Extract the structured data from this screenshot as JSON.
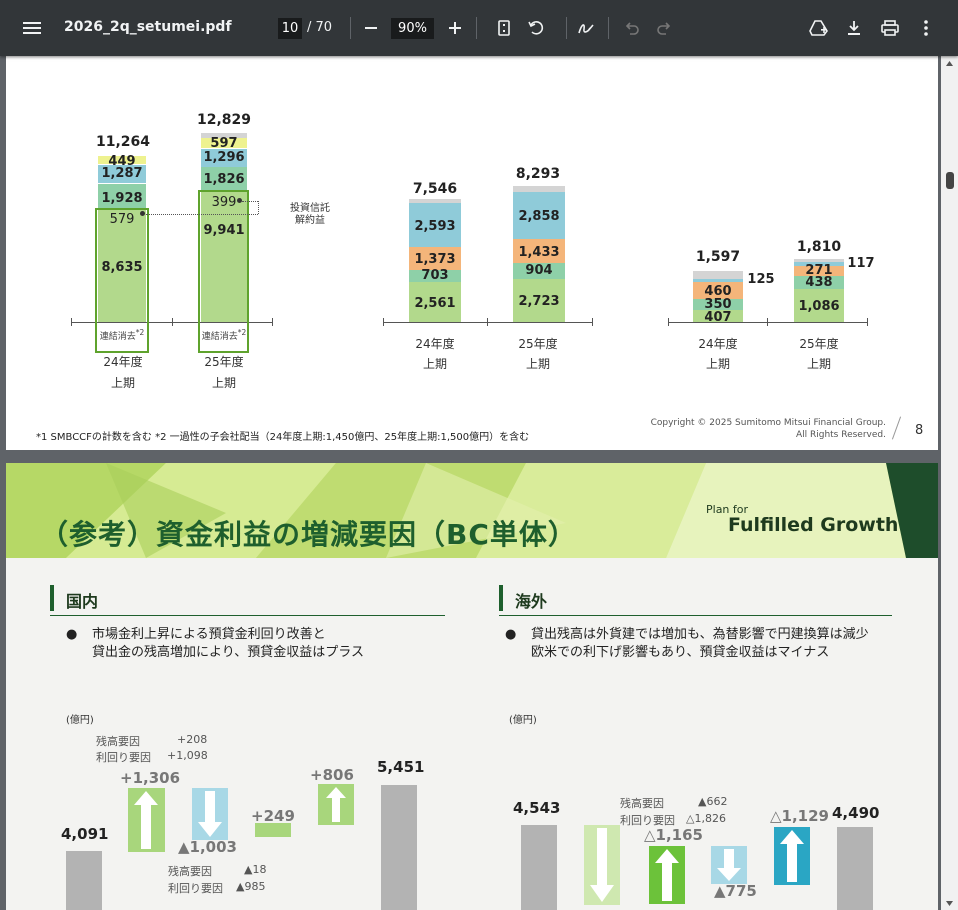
{
  "toolbar": {
    "filename": "2026_2q_setumei.pdf",
    "current_page": "10",
    "total_pages": "/ 70",
    "zoom": "90%"
  },
  "page1": {
    "chart_left": {
      "totals": [
        "11,264",
        "12,829"
      ],
      "bar1_values": [
        "449",
        "1,287",
        "1,928",
        "579",
        "8,635"
      ],
      "bar2_values": [
        "597",
        "1,296",
        "1,826",
        "399",
        "9,941"
      ],
      "elim_label": "連結消去",
      "elim_sup": "*2",
      "x_labels": [
        [
          "24年度",
          "上期"
        ],
        [
          "25年度",
          "上期"
        ]
      ],
      "annotation": [
        "投資信託",
        "解約益"
      ]
    },
    "chart_mid": {
      "totals": [
        "7,546",
        "8,293"
      ],
      "bar1_values": [
        "2,593",
        "1,373",
        "703",
        "2,561"
      ],
      "bar2_values": [
        "2,858",
        "1,433",
        "904",
        "2,723"
      ],
      "x_labels": [
        [
          "24年度",
          "上期"
        ],
        [
          "25年度",
          "上期"
        ]
      ]
    },
    "chart_right": {
      "totals": [
        "1,597",
        "1,810"
      ],
      "bar1_values": [
        "460",
        "350",
        "407"
      ],
      "bar1_side": "125",
      "bar2_values": [
        "271",
        "438",
        "1,086"
      ],
      "bar2_side": "117",
      "x_labels": [
        [
          "24年度",
          "上期"
        ],
        [
          "25年度",
          "上期"
        ]
      ]
    },
    "footnote": "*1 SMBCCFの計数を含む *2 一過性の子会社配当（24年度上期:1,450億円、25年度上期:1,500億円）を含む",
    "copyright": [
      "Copyright © 2025 Sumitomo Mitsui Financial Group.",
      "All Rights Reserved."
    ],
    "page_number": "8"
  },
  "page2": {
    "title": "（参考）資金利益の増減要因（BC単体）",
    "logo": {
      "line1": "Plan for",
      "line2": "Fulfilled Growth"
    },
    "domestic": {
      "heading": "国内",
      "bullet": [
        "市場金利上昇による預貸金利回り改善と",
        "貸出金の残高増加により、預貸金収益はプラス"
      ],
      "unit": "(億円)",
      "start": "4,091",
      "up1": "+1,306",
      "up1_factors": [
        [
          "残高要因",
          "+208"
        ],
        [
          "利回り要因",
          "+1,098"
        ]
      ],
      "down1": "▲1,003",
      "down1_factors": [
        [
          "残高要因",
          "▲18"
        ],
        [
          "利回り要因",
          "▲985"
        ]
      ],
      "up2": "+249",
      "up3": "+806",
      "end": "5,451"
    },
    "overseas": {
      "heading": "海外",
      "bullet": [
        "貸出残高は外貨建では増加も、為替影響で円建換算は減少",
        "欧米での利下げ影響もあり、預貸金収益はマイナス"
      ],
      "unit": "(億円)",
      "start": "4,543",
      "factors": [
        [
          "残高要因",
          "▲662"
        ],
        [
          "利回り要因",
          "△1,826"
        ]
      ],
      "up1": "△1,165",
      "down1": "▲775",
      "up2": "△1,129",
      "end": "4,490"
    }
  }
}
